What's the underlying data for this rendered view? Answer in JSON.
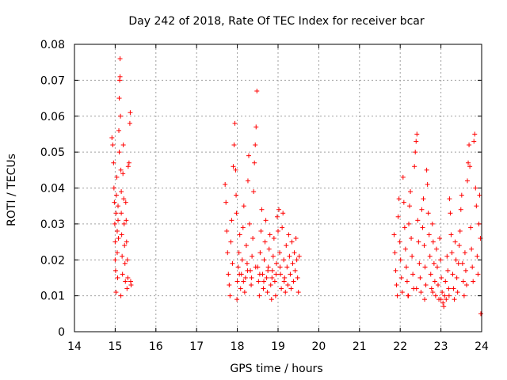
{
  "chart_data": {
    "type": "scatter",
    "title": "Day 242 of 2018, Rate Of TEC Index for receiver bcar",
    "xlabel": "GPS time / hours",
    "ylabel": "ROTI / TECUs",
    "xlim": [
      14,
      24
    ],
    "ylim": [
      0,
      0.08
    ],
    "xticks": [
      "14",
      "15",
      "16",
      "17",
      "18",
      "19",
      "20",
      "21",
      "22",
      "23",
      "24"
    ],
    "yticks": [
      "0",
      "0.01",
      "0.02",
      "0.03",
      "0.04",
      "0.05",
      "0.06",
      "0.07",
      "0.08"
    ],
    "grid": true,
    "marker": "+",
    "color": "#ff0000",
    "series": [
      {
        "points": [
          [
            14.92,
            0.054
          ],
          [
            14.94,
            0.052
          ],
          [
            14.96,
            0.047
          ],
          [
            14.97,
            0.04
          ],
          [
            14.98,
            0.036
          ],
          [
            14.99,
            0.03
          ],
          [
            15.0,
            0.025
          ],
          [
            15.0,
            0.02
          ],
          [
            15.01,
            0.017
          ],
          [
            15.02,
            0.033
          ],
          [
            15.03,
            0.038
          ],
          [
            15.04,
            0.043
          ],
          [
            15.05,
            0.028
          ],
          [
            15.05,
            0.022
          ],
          [
            15.06,
            0.015
          ],
          [
            15.07,
            0.035
          ],
          [
            15.07,
            0.031
          ],
          [
            15.08,
            0.026
          ],
          [
            15.09,
            0.056
          ],
          [
            15.1,
            0.065
          ],
          [
            15.1,
            0.05
          ],
          [
            15.11,
            0.07
          ],
          [
            15.12,
            0.071
          ],
          [
            15.12,
            0.076
          ],
          [
            15.13,
            0.06
          ],
          [
            15.14,
            0.045
          ],
          [
            15.15,
            0.039
          ],
          [
            15.15,
            0.033
          ],
          [
            15.16,
            0.027
          ],
          [
            15.17,
            0.021
          ],
          [
            15.18,
            0.016
          ],
          [
            15.19,
            0.044
          ],
          [
            15.2,
            0.052
          ],
          [
            15.21,
            0.037
          ],
          [
            15.22,
            0.03
          ],
          [
            15.23,
            0.024
          ],
          [
            15.24,
            0.019
          ],
          [
            15.25,
            0.014
          ],
          [
            15.26,
            0.036
          ],
          [
            15.27,
            0.031
          ],
          [
            15.28,
            0.025
          ],
          [
            15.29,
            0.012
          ],
          [
            15.3,
            0.02
          ],
          [
            15.31,
            0.015
          ],
          [
            15.32,
            0.046
          ],
          [
            15.34,
            0.047
          ],
          [
            15.36,
            0.058
          ],
          [
            15.37,
            0.061
          ],
          [
            15.38,
            0.014
          ],
          [
            15.39,
            0.013
          ],
          [
            15.02,
            0.011
          ],
          [
            15.14,
            0.01
          ],
          [
            17.7,
            0.041
          ],
          [
            17.72,
            0.036
          ],
          [
            17.74,
            0.028
          ],
          [
            17.76,
            0.022
          ],
          [
            17.78,
            0.016
          ],
          [
            17.8,
            0.013
          ],
          [
            17.82,
            0.01
          ],
          [
            17.84,
            0.025
          ],
          [
            17.86,
            0.031
          ],
          [
            17.88,
            0.019
          ],
          [
            17.9,
            0.046
          ],
          [
            17.92,
            0.052
          ],
          [
            17.94,
            0.058
          ],
          [
            17.96,
            0.045
          ],
          [
            17.97,
            0.038
          ],
          [
            17.98,
            0.033
          ],
          [
            17.99,
            0.009
          ],
          [
            18.0,
            0.014
          ],
          [
            18.02,
            0.018
          ],
          [
            18.04,
            0.022
          ],
          [
            18.06,
            0.027
          ],
          [
            18.08,
            0.012
          ],
          [
            18.1,
            0.016
          ],
          [
            18.12,
            0.02
          ],
          [
            18.14,
            0.029
          ],
          [
            18.16,
            0.035
          ],
          [
            18.18,
            0.011
          ],
          [
            18.2,
            0.015
          ],
          [
            18.22,
            0.024
          ],
          [
            18.24,
            0.019
          ],
          [
            18.26,
            0.042
          ],
          [
            18.28,
            0.049
          ],
          [
            18.3,
            0.03
          ],
          [
            18.32,
            0.017
          ],
          [
            18.34,
            0.013
          ],
          [
            18.36,
            0.021
          ],
          [
            18.38,
            0.026
          ],
          [
            18.4,
            0.039
          ],
          [
            18.42,
            0.047
          ],
          [
            18.44,
            0.052
          ],
          [
            18.46,
            0.057
          ],
          [
            18.48,
            0.067
          ],
          [
            18.5,
            0.018
          ],
          [
            18.52,
            0.014
          ],
          [
            18.54,
            0.01
          ],
          [
            18.56,
            0.022
          ],
          [
            18.58,
            0.028
          ],
          [
            18.6,
            0.034
          ],
          [
            18.62,
            0.016
          ],
          [
            18.64,
            0.012
          ],
          [
            18.66,
            0.02
          ],
          [
            18.68,
            0.025
          ],
          [
            18.7,
            0.031
          ],
          [
            18.72,
            0.015
          ],
          [
            18.74,
            0.011
          ],
          [
            18.76,
            0.018
          ],
          [
            18.78,
            0.023
          ],
          [
            18.8,
            0.027
          ],
          [
            18.82,
            0.013
          ],
          [
            18.84,
            0.009
          ],
          [
            18.86,
            0.017
          ],
          [
            18.88,
            0.021
          ],
          [
            18.9,
            0.026
          ],
          [
            18.92,
            0.014
          ],
          [
            18.94,
            0.01
          ],
          [
            18.96,
            0.019
          ],
          [
            18.98,
            0.032
          ],
          [
            19.0,
            0.028
          ],
          [
            19.02,
            0.034
          ],
          [
            19.04,
            0.022
          ],
          [
            19.06,
            0.016
          ],
          [
            19.08,
            0.012
          ],
          [
            19.1,
            0.029
          ],
          [
            19.12,
            0.033
          ],
          [
            19.14,
            0.02
          ],
          [
            19.16,
            0.015
          ],
          [
            19.18,
            0.011
          ],
          [
            19.2,
            0.024
          ],
          [
            19.22,
            0.018
          ],
          [
            19.24,
            0.013
          ],
          [
            19.26,
            0.027
          ],
          [
            19.28,
            0.021
          ],
          [
            19.3,
            0.016
          ],
          [
            19.32,
            0.012
          ],
          [
            19.34,
            0.025
          ],
          [
            19.36,
            0.019
          ],
          [
            19.38,
            0.014
          ],
          [
            19.4,
            0.022
          ],
          [
            19.42,
            0.017
          ],
          [
            19.44,
            0.026
          ],
          [
            19.46,
            0.02
          ],
          [
            19.48,
            0.015
          ],
          [
            19.5,
            0.011
          ],
          [
            19.52,
            0.021
          ],
          [
            18.05,
            0.016
          ],
          [
            18.15,
            0.014
          ],
          [
            18.25,
            0.017
          ],
          [
            18.35,
            0.015
          ],
          [
            18.45,
            0.018
          ],
          [
            18.55,
            0.016
          ],
          [
            18.65,
            0.014
          ],
          [
            18.75,
            0.017
          ],
          [
            18.85,
            0.015
          ],
          [
            18.95,
            0.016
          ],
          [
            19.05,
            0.018
          ],
          [
            19.15,
            0.014
          ],
          [
            21.85,
            0.027
          ],
          [
            21.87,
            0.022
          ],
          [
            21.89,
            0.017
          ],
          [
            21.91,
            0.013
          ],
          [
            21.93,
            0.01
          ],
          [
            21.95,
            0.032
          ],
          [
            21.97,
            0.037
          ],
          [
            21.99,
            0.025
          ],
          [
            22.01,
            0.02
          ],
          [
            22.03,
            0.015
          ],
          [
            22.05,
            0.011
          ],
          [
            22.07,
            0.043
          ],
          [
            22.09,
            0.036
          ],
          [
            22.11,
            0.029
          ],
          [
            22.13,
            0.023
          ],
          [
            22.15,
            0.018
          ],
          [
            22.17,
            0.014
          ],
          [
            22.19,
            0.01
          ],
          [
            22.21,
            0.03
          ],
          [
            22.23,
            0.035
          ],
          [
            22.25,
            0.039
          ],
          [
            22.27,
            0.026
          ],
          [
            22.29,
            0.021
          ],
          [
            22.31,
            0.016
          ],
          [
            22.33,
            0.012
          ],
          [
            22.35,
            0.046
          ],
          [
            22.37,
            0.05
          ],
          [
            22.39,
            0.053
          ],
          [
            22.41,
            0.055
          ],
          [
            22.43,
            0.031
          ],
          [
            22.45,
            0.025
          ],
          [
            22.47,
            0.019
          ],
          [
            22.49,
            0.015
          ],
          [
            22.51,
            0.011
          ],
          [
            22.53,
            0.034
          ],
          [
            22.55,
            0.029
          ],
          [
            22.57,
            0.037
          ],
          [
            22.59,
            0.024
          ],
          [
            22.61,
            0.018
          ],
          [
            22.63,
            0.013
          ],
          [
            22.65,
            0.045
          ],
          [
            22.67,
            0.041
          ],
          [
            22.69,
            0.033
          ],
          [
            22.71,
            0.027
          ],
          [
            22.73,
            0.021
          ],
          [
            22.75,
            0.016
          ],
          [
            22.77,
            0.012
          ],
          [
            22.79,
            0.03
          ],
          [
            22.81,
            0.025
          ],
          [
            22.83,
            0.019
          ],
          [
            22.85,
            0.014
          ],
          [
            22.87,
            0.01
          ],
          [
            22.89,
            0.023
          ],
          [
            22.91,
            0.018
          ],
          [
            22.93,
            0.013
          ],
          [
            22.95,
            0.009
          ],
          [
            22.97,
            0.026
          ],
          [
            22.99,
            0.02
          ],
          [
            23.01,
            0.015
          ],
          [
            23.03,
            0.011
          ],
          [
            23.05,
            0.008
          ],
          [
            23.07,
            0.007
          ],
          [
            23.09,
            0.01
          ],
          [
            23.11,
            0.014
          ],
          [
            23.13,
            0.009
          ],
          [
            23.15,
            0.021
          ],
          [
            23.17,
            0.017
          ],
          [
            23.19,
            0.012
          ],
          [
            23.21,
            0.037
          ],
          [
            23.23,
            0.033
          ],
          [
            23.25,
            0.027
          ],
          [
            23.27,
            0.022
          ],
          [
            23.29,
            0.016
          ],
          [
            23.31,
            0.012
          ],
          [
            23.33,
            0.009
          ],
          [
            23.35,
            0.025
          ],
          [
            23.37,
            0.02
          ],
          [
            23.39,
            0.015
          ],
          [
            23.41,
            0.011
          ],
          [
            23.43,
            0.019
          ],
          [
            23.45,
            0.024
          ],
          [
            23.47,
            0.028
          ],
          [
            23.49,
            0.034
          ],
          [
            23.51,
            0.038
          ],
          [
            23.53,
            0.019
          ],
          [
            23.55,
            0.014
          ],
          [
            23.57,
            0.01
          ],
          [
            23.59,
            0.022
          ],
          [
            23.61,
            0.017
          ],
          [
            23.63,
            0.013
          ],
          [
            23.65,
            0.042
          ],
          [
            23.67,
            0.047
          ],
          [
            23.69,
            0.052
          ],
          [
            23.71,
            0.046
          ],
          [
            23.73,
            0.029
          ],
          [
            23.75,
            0.023
          ],
          [
            23.77,
            0.018
          ],
          [
            23.79,
            0.014
          ],
          [
            23.81,
            0.053
          ],
          [
            23.83,
            0.055
          ],
          [
            23.85,
            0.04
          ],
          [
            23.87,
            0.035
          ],
          [
            23.89,
            0.021
          ],
          [
            23.91,
            0.016
          ],
          [
            23.93,
            0.03
          ],
          [
            23.95,
            0.038
          ],
          [
            23.97,
            0.026
          ],
          [
            23.98,
            0.005
          ],
          [
            22.2,
            0.01
          ],
          [
            22.4,
            0.012
          ],
          [
            22.6,
            0.009
          ],
          [
            22.8,
            0.011
          ],
          [
            23.0,
            0.009
          ],
          [
            23.2,
            0.01
          ]
        ]
      }
    ]
  }
}
